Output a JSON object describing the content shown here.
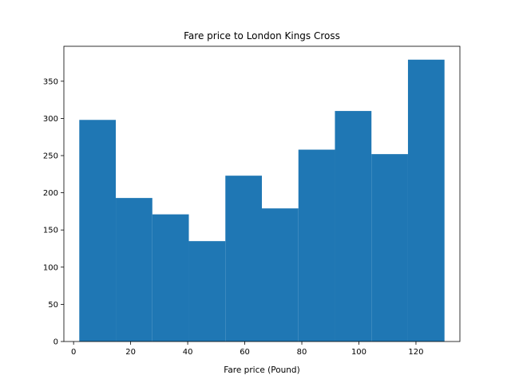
{
  "chart_data": {
    "type": "bar",
    "histogram": true,
    "title": "Fare price to London Kings Cross",
    "xlabel": "Fare price (Pound)",
    "ylabel": "",
    "bin_edges": [
      2.0,
      14.8,
      27.6,
      40.4,
      53.2,
      66.0,
      78.8,
      91.6,
      104.4,
      117.2,
      130.0
    ],
    "values": [
      298,
      193,
      171,
      135,
      223,
      179,
      258,
      310,
      252,
      379
    ],
    "xlim": [
      -3.4,
      135.4
    ],
    "ylim": [
      0,
      397
    ],
    "xticks": [
      0,
      20,
      40,
      60,
      80,
      100,
      120
    ],
    "yticks": [
      0,
      50,
      100,
      150,
      200,
      250,
      300,
      350
    ],
    "grid": false,
    "legend": "none",
    "bar_color": "#1f77b4"
  }
}
